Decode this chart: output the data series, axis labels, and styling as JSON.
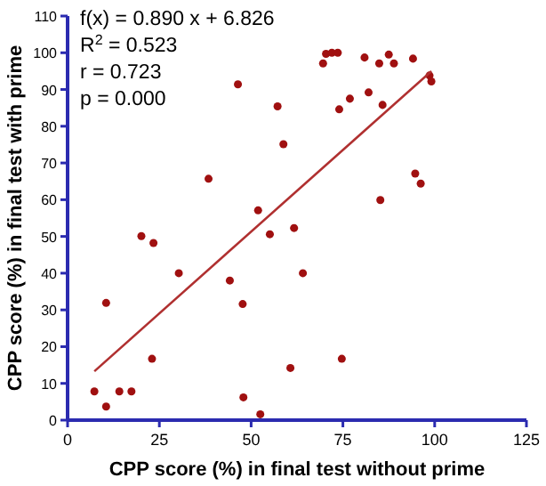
{
  "chart_data": {
    "type": "scatter",
    "xlabel": "CPP score (%) in final test without prime",
    "ylabel": "CPP score (%) in final test with prime",
    "annotations": [
      "f(x) = 0.890 x + 6.826",
      "R$^{2}$ = 0.523",
      "r = 0.723",
      "p = 0.000"
    ],
    "xlim": [
      0,
      125
    ],
    "xticks": [
      0,
      25,
      50,
      75,
      100,
      125
    ],
    "ylim": [
      0,
      110
    ],
    "yticks": [
      0,
      10,
      20,
      30,
      40,
      50,
      60,
      70,
      80,
      90,
      100,
      110
    ],
    "grid": false,
    "marker": "circle",
    "series": [
      {
        "color": "#a01010",
        "x": [
          7.3,
          10.5,
          10.5,
          14.1,
          17.4,
          20.1,
          23.4,
          23.0,
          30.3,
          44.2,
          47.7,
          47.9,
          51.9,
          52.5,
          55.1,
          60.7,
          61.7,
          64.1,
          46.4,
          57.2,
          58.8,
          38.4,
          69.6,
          70.4,
          72.0,
          73.6,
          80.9,
          84.9,
          87.5,
          88.9,
          94.1,
          98.6,
          99.1,
          74.0,
          76.9,
          82.0,
          85.8,
          94.7,
          96.2,
          85.2,
          74.7
        ],
        "values": [
          7.8,
          3.7,
          31.9,
          7.8,
          7.8,
          50.1,
          48.2,
          16.7,
          40.0,
          38.0,
          31.6,
          6.2,
          57.1,
          1.6,
          50.6,
          14.2,
          52.3,
          40.0,
          91.4,
          85.4,
          75.1,
          65.7,
          97.1,
          99.7,
          100,
          100,
          98.7,
          97.1,
          99.5,
          97.1,
          98.4,
          93.8,
          92.2,
          84.6,
          87.5,
          89.2,
          85.8,
          67.1,
          64.4,
          59.9,
          16.7
        ]
      },
      {
        "type": "line",
        "color": "#b03030",
        "marker": "none",
        "line_style": "solid",
        "x": [
          7.3,
          99.1
        ],
        "values": [
          13.3,
          95.0
        ]
      }
    ]
  }
}
